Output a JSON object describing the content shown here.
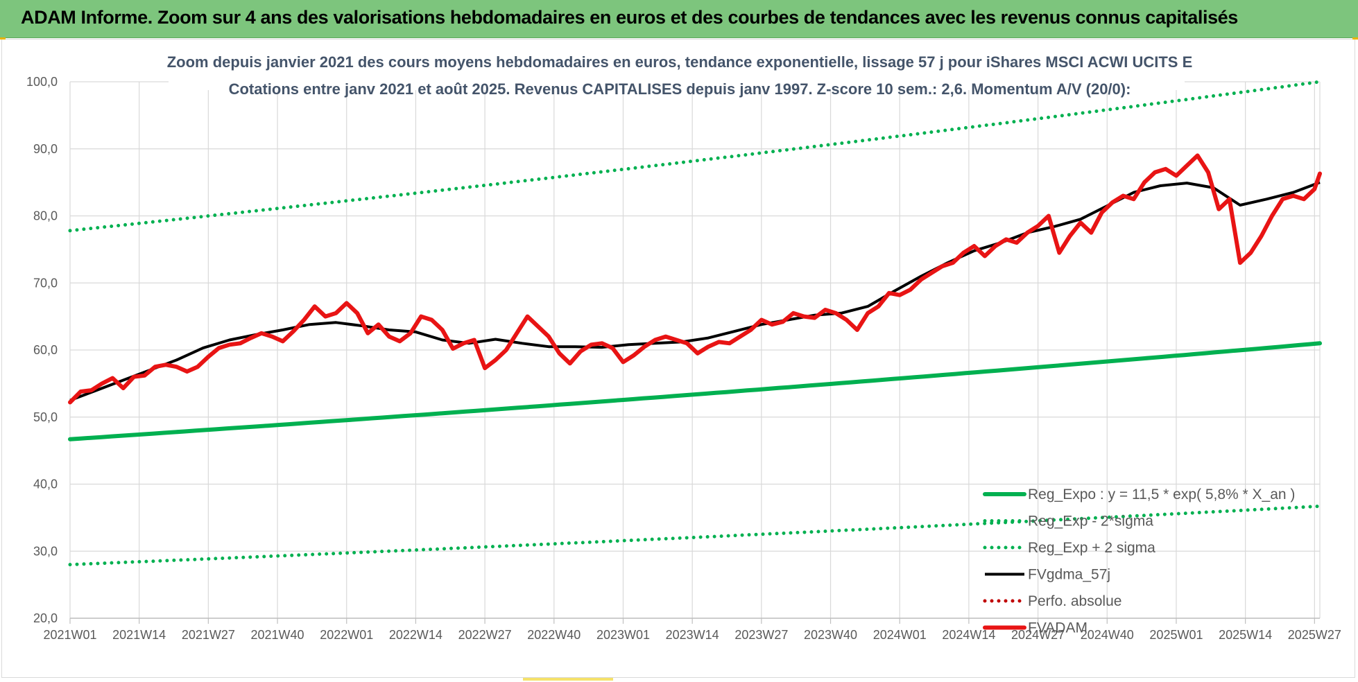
{
  "banner": {
    "title": "ADAM Informe. Zoom sur 4 ans des valorisations hebdomadaires en euros et des courbes de tendances avec les revenus connus capitalisés"
  },
  "colors": {
    "banner_bg": "#7dc57d",
    "trend": "#00b050",
    "fvgdma": "#000000",
    "fvadam": "#e81414",
    "perfo": "#c00000",
    "grid": "#d9d9d9",
    "axis_text": "#595959",
    "title_text": "#44546a"
  },
  "chart_data": {
    "type": "line",
    "title": "Zoom depuis janvier 2021 des cours moyens hebdomadaires en euros, tendance exponentielle, lissage 57 j pour iShares MSCI ACWI UCITS E",
    "subtitle": "Cotations entre janv 2021 et août 2025. Revenus CAPITALISES depuis janv 1997. Z-score 10 sem.: 2,6. Momentum A/V (20/0):",
    "xlabel": "",
    "ylabel": "",
    "ylim": [
      20,
      100
    ],
    "yticks": [
      "20,0",
      "30,0",
      "40,0",
      "50,0",
      "60,0",
      "70,0",
      "80,0",
      "90,0",
      "100,0"
    ],
    "x_categories": [
      "2021W01",
      "2021W14",
      "2021W27",
      "2021W40",
      "2022W01",
      "2022W14",
      "2022W27",
      "2022W40",
      "2023W01",
      "2023W14",
      "2023W27",
      "2023W40",
      "2024W01",
      "2024W14",
      "2024W27",
      "2024W40",
      "2025W01",
      "2025W14",
      "2025W27"
    ],
    "x_range_weeks": [
      0,
      235
    ],
    "grid": true,
    "legend_position": "bottom-right",
    "series": [
      {
        "name": "Reg_Expo : y = 11,5 * exp( 5,8% *  X_an )",
        "style": "solid-thick",
        "color": "#00b050",
        "x": [
          0,
          235
        ],
        "y": [
          46.7,
          61.0
        ]
      },
      {
        "name": "Reg_Exp - 2*sigma",
        "style": "dotted",
        "color": "#00b050",
        "x": [
          0,
          235
        ],
        "y": [
          28.0,
          36.7
        ]
      },
      {
        "name": "Reg_Exp + 2 sigma",
        "style": "dotted",
        "color": "#00b050",
        "x": [
          0,
          235
        ],
        "y": [
          77.8,
          100.0
        ],
        "clip_max": 100
      },
      {
        "name": "FVgdma_57j",
        "style": "solid",
        "color": "#000000",
        "x": [
          0,
          5,
          10,
          15,
          20,
          25,
          30,
          35,
          40,
          45,
          50,
          55,
          60,
          65,
          70,
          75,
          80,
          85,
          90,
          95,
          100,
          105,
          110,
          115,
          120,
          125,
          130,
          135,
          140,
          145,
          150,
          155,
          160,
          165,
          170,
          175,
          180,
          185,
          190,
          195,
          200,
          205,
          210,
          215,
          220,
          225,
          230,
          235
        ],
        "y": [
          52.5,
          54.0,
          55.5,
          57.0,
          58.5,
          60.3,
          61.5,
          62.3,
          63.0,
          63.8,
          64.1,
          63.6,
          63.0,
          62.7,
          61.5,
          61.0,
          61.6,
          61.0,
          60.5,
          60.5,
          60.4,
          60.8,
          61.0,
          61.2,
          61.8,
          62.8,
          63.8,
          64.5,
          65.2,
          65.5,
          66.5,
          68.8,
          71.0,
          73.0,
          74.8,
          76.0,
          77.5,
          78.4,
          79.5,
          81.5,
          83.5,
          84.5,
          84.9,
          84.2,
          81.6,
          82.5,
          83.5,
          85.0
        ]
      },
      {
        "name": "Perfo. absolue",
        "style": "dotted",
        "color": "#c00000",
        "x": [],
        "y": []
      },
      {
        "name": "FVADAM",
        "style": "solid-thick",
        "color": "#e81414",
        "x": [
          0,
          2,
          4,
          6,
          8,
          10,
          12,
          14,
          16,
          18,
          20,
          22,
          24,
          26,
          28,
          30,
          32,
          34,
          36,
          38,
          40,
          42,
          44,
          46,
          48,
          50,
          52,
          54,
          56,
          58,
          60,
          62,
          64,
          66,
          68,
          70,
          72,
          74,
          76,
          78,
          80,
          82,
          84,
          86,
          88,
          90,
          92,
          94,
          96,
          98,
          100,
          102,
          104,
          106,
          108,
          110,
          112,
          114,
          116,
          118,
          120,
          122,
          124,
          126,
          128,
          130,
          132,
          134,
          136,
          138,
          140,
          142,
          144,
          146,
          148,
          150,
          152,
          154,
          156,
          158,
          160,
          162,
          164,
          166,
          168,
          170,
          172,
          174,
          176,
          178,
          180,
          182,
          184,
          186,
          188,
          190,
          192,
          194,
          196,
          198,
          200,
          202,
          204,
          206,
          208,
          210,
          212,
          214,
          216,
          218,
          220,
          222,
          224,
          226,
          228,
          230,
          232,
          234,
          235
        ],
        "y": [
          52.2,
          53.8,
          54.0,
          55.0,
          55.8,
          54.3,
          56.0,
          56.2,
          57.5,
          57.8,
          57.5,
          56.8,
          57.5,
          59.0,
          60.3,
          60.8,
          61.0,
          61.8,
          62.5,
          62.0,
          61.3,
          62.8,
          64.5,
          66.5,
          65.0,
          65.5,
          67.0,
          65.5,
          62.5,
          63.8,
          62.0,
          61.3,
          62.5,
          65.0,
          64.5,
          63.0,
          60.2,
          61.0,
          61.5,
          57.3,
          58.5,
          60.0,
          62.5,
          65.0,
          63.5,
          62.0,
          59.5,
          58.0,
          59.8,
          60.8,
          61.0,
          60.3,
          58.2,
          59.2,
          60.5,
          61.5,
          62.0,
          61.5,
          61.0,
          59.5,
          60.5,
          61.2,
          61.0,
          62.0,
          63.0,
          64.5,
          63.8,
          64.2,
          65.5,
          65.0,
          64.8,
          66.0,
          65.5,
          64.5,
          63.0,
          65.5,
          66.5,
          68.5,
          68.2,
          69.0,
          70.5,
          71.5,
          72.5,
          73.0,
          74.5,
          75.5,
          74.0,
          75.5,
          76.5,
          76.0,
          77.5,
          78.5,
          80.0,
          74.5,
          77.0,
          79.0,
          77.5,
          80.5,
          82.0,
          83.0,
          82.5,
          85.0,
          86.5,
          87.0,
          86.0,
          87.5,
          89.0,
          86.5,
          81.0,
          82.5,
          73.0,
          74.5,
          77.0,
          80.0,
          82.5,
          83.0,
          82.5,
          84.0,
          86.3
        ]
      }
    ]
  }
}
